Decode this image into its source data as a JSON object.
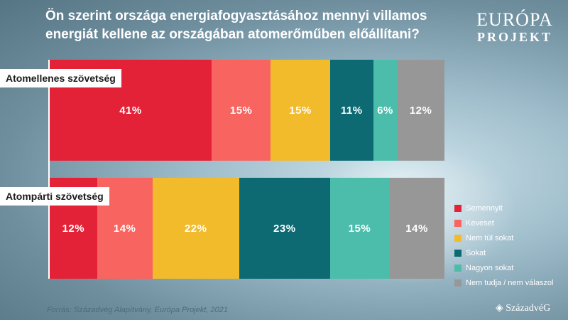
{
  "title": "Ön szerint országa energiafogyasztásához mennyi villamos energiát kellene az országában atomerőműben előállítani?",
  "logo": {
    "line1": "EURÓPA",
    "line2": "PROJEKT"
  },
  "source": "Forrás: Századvég Alapítvány, Európa Projekt, 2021",
  "brand": "◈ SzázadvéG",
  "colors": [
    "#e42237",
    "#f86460",
    "#f2bb2c",
    "#0d6a73",
    "#4cbdab",
    "#979797"
  ],
  "chart_data": {
    "type": "bar",
    "orientation": "horizontal",
    "stacked": true,
    "categories": [
      "Atomellenes szövetség",
      "Atompárti szövetség"
    ],
    "series": [
      {
        "name": "Semennyit",
        "values": [
          41,
          12
        ],
        "labels": [
          "41%",
          "12%"
        ]
      },
      {
        "name": "Keveset",
        "values": [
          15,
          14
        ],
        "labels": [
          "15%",
          "14%"
        ]
      },
      {
        "name": "Nem túl sokat",
        "values": [
          15,
          22
        ],
        "labels": [
          "15%",
          "22%"
        ]
      },
      {
        "name": "Sokat",
        "values": [
          11,
          23
        ],
        "labels": [
          "11%",
          "23%"
        ]
      },
      {
        "name": "Nagyon sokat",
        "values": [
          6,
          15
        ],
        "labels": [
          "6%",
          "15%"
        ]
      },
      {
        "name": "Nem tudja / nem válaszol",
        "values": [
          12,
          14
        ],
        "labels": [
          "12%",
          "14%"
        ]
      }
    ],
    "legend": "right"
  }
}
